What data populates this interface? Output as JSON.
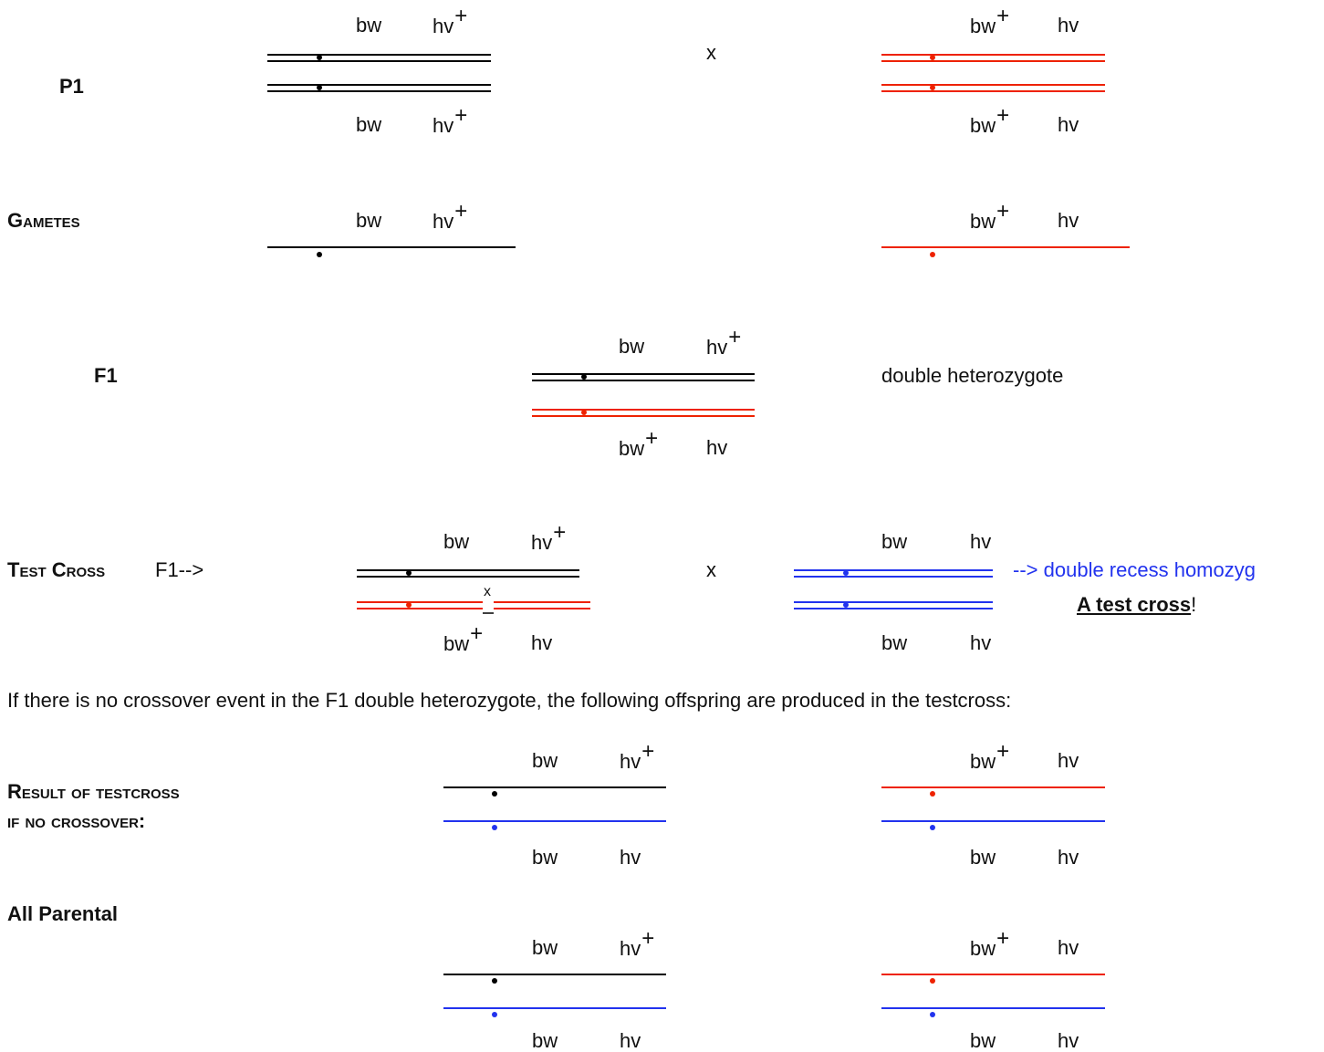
{
  "labels": {
    "p1": "P1",
    "gametes": "Gametes",
    "f1": "F1",
    "test_cross": "Test Cross",
    "f1_arrow": "F1-->",
    "result_line1": "Result of testcross",
    "result_line2": "if no crossover:",
    "all_parental": "All Parental"
  },
  "genes": {
    "bw": "bw",
    "hv": "hv",
    "plus": "+"
  },
  "symbols": {
    "cross": "x",
    "crossover_mark": "x"
  },
  "text": {
    "double_heterozygote": "double heterozygote",
    "arrow": "-->",
    "double_recess": "double recess homozyg",
    "a_test_cross": "A test cross",
    "exclamation": "!",
    "no_crossover_sentence": "If there is no crossover event in the F1 double heterozygote, the following offspring are produced in the testcross:"
  },
  "colors": {
    "black": "#000000",
    "red": "#ee2200",
    "blue": "#2233ee"
  }
}
